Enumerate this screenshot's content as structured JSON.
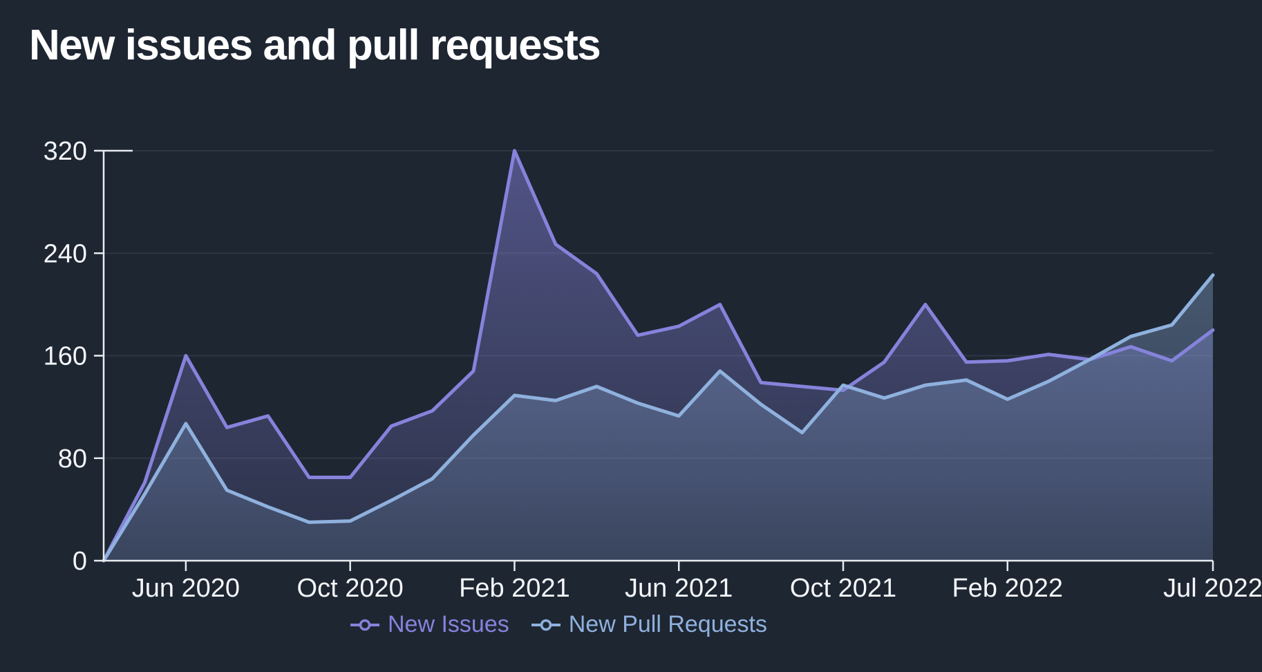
{
  "title": "New issues and pull requests",
  "colors": {
    "background": "#1e2632",
    "text": "#f4f6f9",
    "axis": "#e8ebef",
    "grid": "#2e3644",
    "issues": "#8583db",
    "pull_requests": "#8fb1de"
  },
  "legend": {
    "items": [
      {
        "label": "New Issues",
        "series": "new_issues"
      },
      {
        "label": "New Pull Requests",
        "series": "new_pull_requests"
      }
    ]
  },
  "chart_data": {
    "type": "area",
    "title": "New issues and pull requests",
    "x": [
      "Apr 2020",
      "May 2020",
      "Jun 2020",
      "Jul 2020",
      "Aug 2020",
      "Sep 2020",
      "Oct 2020",
      "Nov 2020",
      "Dec 2020",
      "Jan 2021",
      "Feb 2021",
      "Mar 2021",
      "Apr 2021",
      "May 2021",
      "Jun 2021",
      "Jul 2021",
      "Aug 2021",
      "Sep 2021",
      "Oct 2021",
      "Nov 2021",
      "Dec 2021",
      "Jan 2022",
      "Feb 2022",
      "Mar 2022",
      "Apr 2022",
      "May 2022",
      "Jun 2022",
      "Jul 2022"
    ],
    "series": [
      {
        "name": "New Issues",
        "color_key": "issues",
        "values": [
          0,
          61,
          160,
          104,
          113,
          65,
          65,
          105,
          117,
          148,
          320,
          247,
          224,
          176,
          183,
          200,
          139,
          136,
          133,
          155,
          200,
          155,
          156,
          161,
          157,
          167,
          156,
          180
        ]
      },
      {
        "name": "New Pull Requests",
        "color_key": "pull_requests",
        "values": [
          0,
          52,
          107,
          55,
          42,
          30,
          31,
          47,
          64,
          98,
          129,
          125,
          136,
          123,
          113,
          148,
          122,
          100,
          137,
          127,
          137,
          141,
          126,
          140,
          157,
          175,
          184,
          223
        ]
      }
    ],
    "x_tick_labels": [
      "Jun 2020",
      "Oct 2020",
      "Feb 2021",
      "Jun 2021",
      "Oct 2021",
      "Feb 2022",
      "Jul 2022"
    ],
    "x_tick_indices": [
      2,
      6,
      10,
      14,
      18,
      22,
      27
    ],
    "y_ticks": [
      0,
      80,
      160,
      240,
      320
    ],
    "ylim": [
      0,
      320
    ],
    "grid": "horizontal",
    "legend_position": "bottom"
  }
}
